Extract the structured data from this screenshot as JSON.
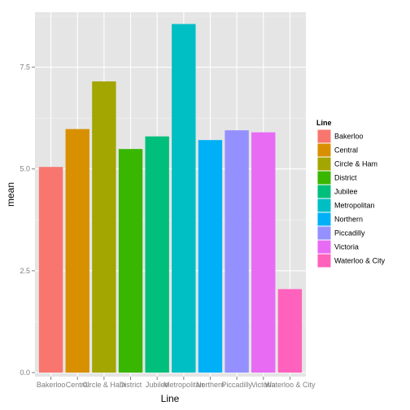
{
  "chart_data": {
    "type": "bar",
    "xlabel": "Line",
    "ylabel": "mean",
    "ylim": [
      -0.1,
      8.85
    ],
    "yticks": [
      "0.0",
      "2.5",
      "5.0",
      "7.5"
    ],
    "categories": [
      "Bakerloo",
      "Central",
      "Circle & Ham",
      "District",
      "Jubilee",
      "Metropolitan",
      "Northern",
      "Piccadilly",
      "Victoria",
      "Waterloo & City"
    ],
    "values": [
      5.05,
      5.98,
      7.15,
      5.49,
      5.8,
      8.56,
      5.71,
      5.95,
      5.9,
      2.05
    ],
    "colors": [
      "#F8766D",
      "#D89000",
      "#A3A500",
      "#39B600",
      "#00BF7D",
      "#00BFC4",
      "#00B0F6",
      "#9590FF",
      "#E76BF3",
      "#FF62BC"
    ],
    "legend": {
      "title": "Line",
      "position": "right",
      "entries": [
        "Bakerloo",
        "Central",
        "Circle & Ham",
        "District",
        "Jubilee",
        "Metropolitan",
        "Northern",
        "Piccadilly",
        "Victoria",
        "Waterloo & City"
      ]
    },
    "grid": true,
    "panel_background": "#E5E5E5",
    "grid_color": "#FFFFFF"
  }
}
